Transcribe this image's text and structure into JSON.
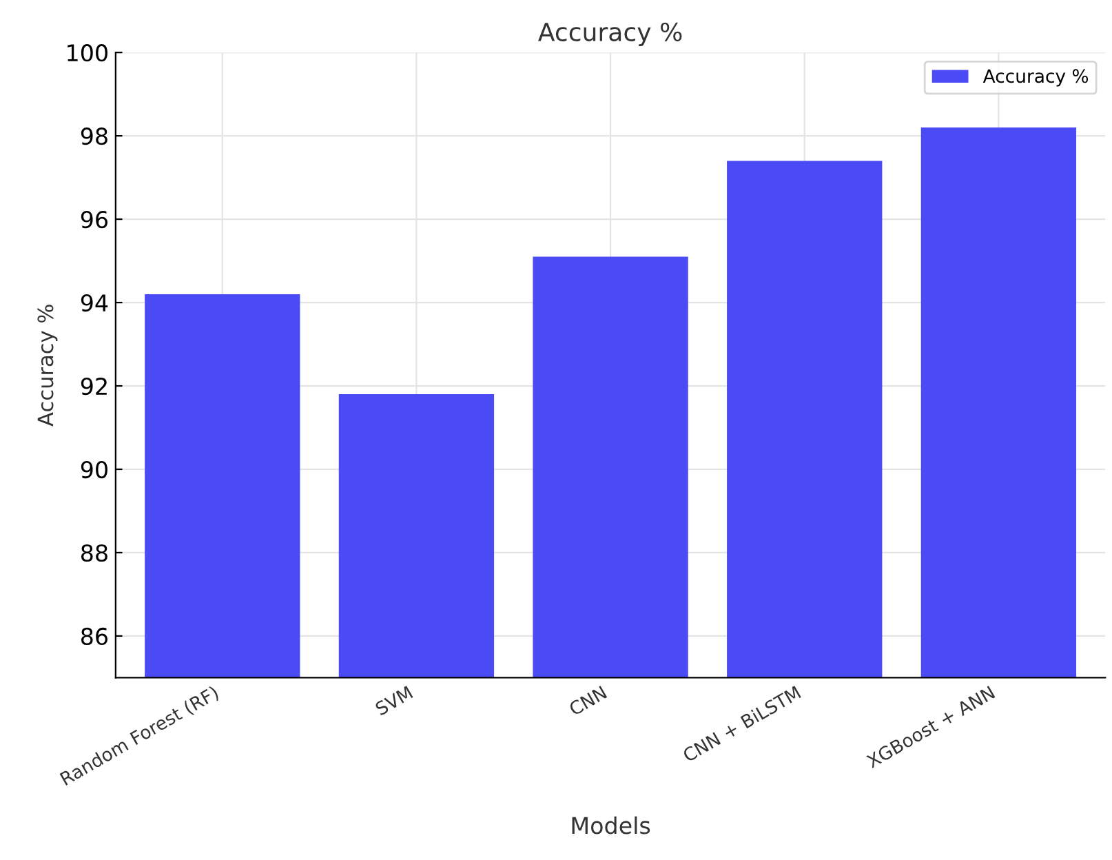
{
  "chart_data": {
    "type": "bar",
    "title": "Accuracy %",
    "xlabel": "Models",
    "ylabel": "Accuracy %",
    "categories": [
      "Random Forest (RF)",
      "SVM",
      "CNN",
      "CNN + BiLSTM",
      "XGBoost + ANN"
    ],
    "series": [
      {
        "name": "Accuracy %",
        "color": "#4b4bf5",
        "values": [
          94.2,
          91.8,
          95.1,
          97.4,
          98.2
        ]
      }
    ],
    "ylim": [
      85,
      100
    ],
    "yticks": [
      86,
      88,
      90,
      92,
      94,
      96,
      98,
      100
    ],
    "grid": true,
    "legend": "top right"
  }
}
